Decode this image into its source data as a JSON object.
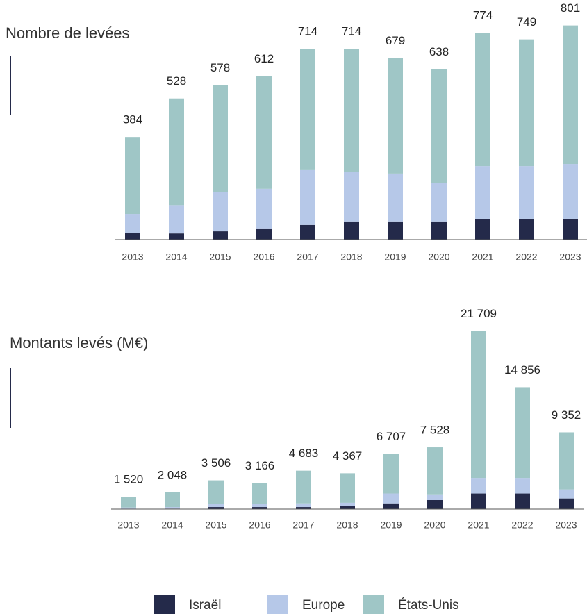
{
  "chart_data": [
    {
      "type": "bar",
      "stacked": true,
      "title": "Nombre de levées",
      "categories": [
        "2013",
        "2014",
        "2015",
        "2016",
        "2017",
        "2018",
        "2019",
        "2020",
        "2021",
        "2022",
        "2023"
      ],
      "series": [
        {
          "name": "Israël",
          "color": "#242a4a",
          "values": [
            26,
            23,
            31,
            42,
            55,
            68,
            68,
            68,
            78,
            78,
            78
          ]
        },
        {
          "name": "Europe",
          "color": "#b6c8e8",
          "values": [
            70,
            106,
            148,
            148,
            205,
            184,
            179,
            145,
            197,
            197,
            205
          ]
        },
        {
          "name": "États-Unis",
          "color": "#9fc6c6",
          "values": [
            288,
            399,
            399,
            422,
            454,
            462,
            432,
            425,
            499,
            474,
            518
          ]
        }
      ],
      "totals": [
        384,
        528,
        578,
        612,
        714,
        714,
        679,
        638,
        774,
        749,
        801
      ],
      "ylim": [
        0,
        800
      ]
    },
    {
      "type": "bar",
      "stacked": true,
      "title": "Montants levés (M€)",
      "categories": [
        "2013",
        "2014",
        "2015",
        "2016",
        "2017",
        "2018",
        "2019",
        "2020",
        "2021",
        "2022",
        "2023"
      ],
      "series": [
        {
          "name": "Israël",
          "color": "#242a4a",
          "values": [
            50,
            60,
            250,
            250,
            250,
            420,
            700,
            1100,
            1900,
            1900,
            1300
          ]
        },
        {
          "name": "Europe",
          "color": "#b6c8e8",
          "values": [
            150,
            190,
            350,
            350,
            450,
            350,
            1200,
            700,
            1900,
            1900,
            1100
          ]
        },
        {
          "name": "États-Unis",
          "color": "#9fc6c6",
          "values": [
            1320,
            1798,
            2906,
            2566,
            3983,
            3597,
            4807,
            5728,
            17909,
            11056,
            6952
          ]
        }
      ],
      "totals": [
        1520,
        2048,
        3506,
        3166,
        4683,
        4367,
        6707,
        7528,
        21709,
        14856,
        9352
      ],
      "total_labels": [
        "1 520",
        "2 048",
        "3 506",
        "3 166",
        "4 683",
        "4 367",
        "6 707",
        "7 528",
        "21 709",
        "14 856",
        "9 352"
      ],
      "ylim": [
        0,
        22000
      ]
    }
  ]
}
